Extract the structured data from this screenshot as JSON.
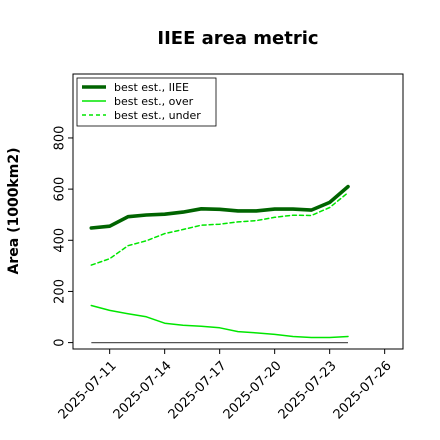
{
  "chart_data": {
    "type": "line",
    "title": "IIEE area metric",
    "xlabel": "",
    "ylabel": "Area (1000km2)",
    "x": [
      "2025-07-10",
      "2025-07-11",
      "2025-07-12",
      "2025-07-13",
      "2025-07-14",
      "2025-07-15",
      "2025-07-16",
      "2025-07-17",
      "2025-07-18",
      "2025-07-19",
      "2025-07-20",
      "2025-07-21",
      "2025-07-22",
      "2025-07-23",
      "2025-07-24"
    ],
    "x_tick_labels": [
      "2025-07-11",
      "2025-07-14",
      "2025-07-17",
      "2025-07-20",
      "2025-07-23",
      "2025-07-26"
    ],
    "x_range": [
      "2025-07-09",
      "2025-07-27"
    ],
    "ylim": [
      -25,
      1050
    ],
    "y_ticks": [
      0,
      200,
      400,
      600,
      800
    ],
    "y_tick_labels": [
      "0",
      "200",
      "400",
      "600",
      "800"
    ],
    "grid": false,
    "legend_position": "top-left",
    "series": [
      {
        "name": "best est., IIEE",
        "color": "#006400",
        "style": "solid-thick",
        "values": [
          448,
          455,
          492,
          499,
          502,
          510,
          523,
          521,
          515,
          515,
          522,
          522,
          518,
          548,
          610
        ]
      },
      {
        "name": "best est., over",
        "color": "#00e600",
        "style": "solid",
        "values": [
          145,
          126,
          113,
          101,
          76,
          68,
          64,
          58,
          43,
          38,
          32,
          24,
          20,
          20,
          24
        ]
      },
      {
        "name": "best est., under",
        "color": "#00e600",
        "style": "dashed",
        "values": [
          303,
          328,
          379,
          398,
          426,
          442,
          459,
          463,
          472,
          477,
          490,
          498,
          497,
          528,
          586
        ]
      }
    ],
    "baseline": {
      "value": 0,
      "x_start": "2025-07-10",
      "x_end": "2025-07-24",
      "color": "#555555"
    }
  }
}
